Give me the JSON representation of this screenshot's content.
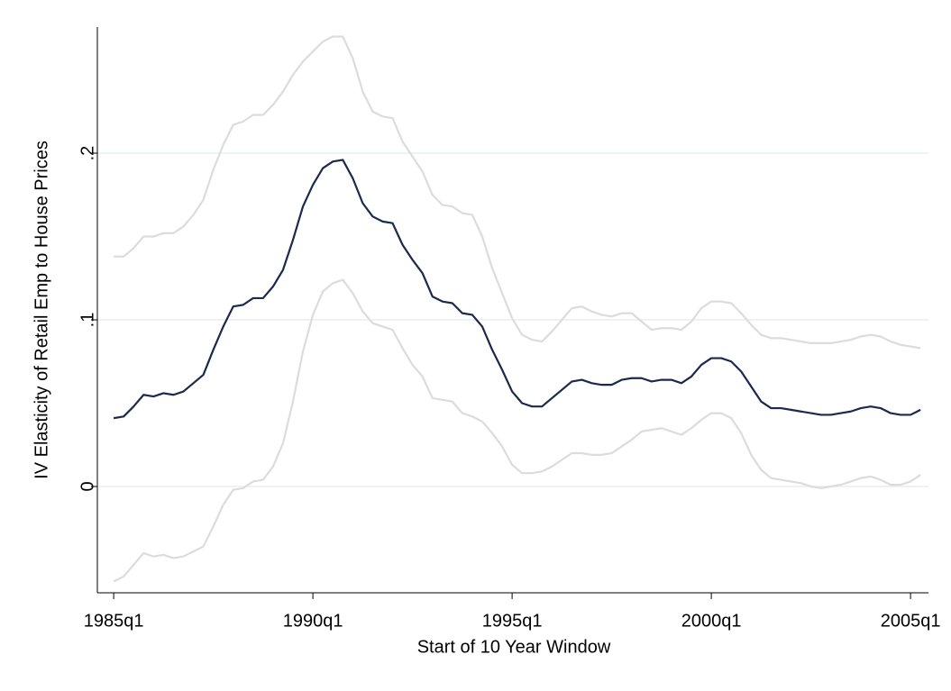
{
  "chart_data": {
    "type": "line",
    "y_label": "IV Elasticity of Retail Emp to House Prices",
    "x_label": "Start of 10 Year Window",
    "grid": true,
    "x": [
      1985,
      1985.25,
      1985.5,
      1985.75,
      1986,
      1986.25,
      1986.5,
      1986.75,
      1987,
      1987.25,
      1987.5,
      1987.75,
      1988,
      1988.25,
      1988.5,
      1988.75,
      1989,
      1989.25,
      1989.5,
      1989.75,
      1990,
      1990.25,
      1990.5,
      1990.75,
      1991,
      1991.25,
      1991.5,
      1991.75,
      1992,
      1992.25,
      1992.5,
      1992.75,
      1993,
      1993.25,
      1993.5,
      1993.75,
      1994,
      1994.25,
      1994.5,
      1994.75,
      1995,
      1995.25,
      1995.5,
      1995.75,
      1996,
      1996.25,
      1996.5,
      1996.75,
      1997,
      1997.25,
      1997.5,
      1997.75,
      1998,
      1998.25,
      1998.5,
      1998.75,
      1999,
      1999.25,
      1999.5,
      1999.75,
      2000,
      2000.25,
      2000.5,
      2000.75,
      2001,
      2001.25,
      2001.5,
      2001.75,
      2002,
      2002.25,
      2002.5,
      2002.75,
      2003,
      2003.25,
      2003.5,
      2003.75,
      2004,
      2004.25,
      2004.5,
      2004.75,
      2005,
      2005.25
    ],
    "xlim": [
      1984.59,
      2005.45
    ],
    "xticks": [
      {
        "value": 1985,
        "label": "1985q1"
      },
      {
        "value": 1990,
        "label": "1990q1"
      },
      {
        "value": 1995,
        "label": "1995q1"
      },
      {
        "value": 2000,
        "label": "2000q1"
      },
      {
        "value": 2005,
        "label": "2005q1"
      }
    ],
    "ylim": [
      -0.0638,
      0.2757
    ],
    "yticks": [
      0,
      {
        "value": 0.1,
        "label": ".1"
      },
      {
        "value": 0.2,
        "label": ".2"
      }
    ],
    "series": [
      {
        "color": "#dcdcdc",
        "values": [
          -0.057,
          -0.054,
          -0.047,
          -0.04,
          -0.042,
          -0.041,
          -0.043,
          -0.042,
          -0.039,
          -0.036,
          -0.024,
          -0.011,
          -0.002,
          -0.001,
          0.003,
          0.004,
          0.012,
          0.026,
          0.051,
          0.081,
          0.103,
          0.117,
          0.122,
          0.124,
          0.116,
          0.105,
          0.098,
          0.096,
          0.094,
          0.083,
          0.073,
          0.066,
          0.053,
          0.052,
          0.051,
          0.044,
          0.042,
          0.039,
          0.032,
          0.024,
          0.013,
          0.008,
          0.008,
          0.009,
          0.012,
          0.016,
          0.02,
          0.02,
          0.019,
          0.019,
          0.02,
          0.024,
          0.028,
          0.033,
          0.034,
          0.035,
          0.033,
          0.031,
          0.035,
          0.04,
          0.044,
          0.044,
          0.041,
          0.032,
          0.019,
          0.01,
          0.005,
          0.004,
          0.003,
          0.002,
          0.0,
          -0.001,
          0.0,
          0.001,
          0.003,
          0.005,
          0.006,
          0.004,
          0.001,
          0.001,
          0.003,
          0.007
        ]
      },
      {
        "color": "#dcdcdc",
        "values": [
          0.138,
          0.138,
          0.143,
          0.15,
          0.15,
          0.152,
          0.152,
          0.156,
          0.163,
          0.172,
          0.19,
          0.205,
          0.217,
          0.219,
          0.223,
          0.223,
          0.229,
          0.237,
          0.247,
          0.255,
          0.261,
          0.267,
          0.27,
          0.27,
          0.257,
          0.237,
          0.225,
          0.222,
          0.221,
          0.207,
          0.198,
          0.189,
          0.175,
          0.169,
          0.168,
          0.164,
          0.163,
          0.15,
          0.131,
          0.116,
          0.101,
          0.091,
          0.088,
          0.087,
          0.093,
          0.1,
          0.107,
          0.108,
          0.105,
          0.103,
          0.102,
          0.104,
          0.104,
          0.099,
          0.094,
          0.095,
          0.095,
          0.094,
          0.099,
          0.107,
          0.111,
          0.111,
          0.11,
          0.104,
          0.097,
          0.091,
          0.089,
          0.089,
          0.088,
          0.087,
          0.086,
          0.086,
          0.086,
          0.087,
          0.088,
          0.09,
          0.091,
          0.09,
          0.087,
          0.085,
          0.084,
          0.083
        ]
      },
      {
        "color": "#1a2a4c",
        "values": [
          0.041,
          0.042,
          0.048,
          0.055,
          0.054,
          0.056,
          0.055,
          0.057,
          0.062,
          0.067,
          0.082,
          0.096,
          0.108,
          0.109,
          0.113,
          0.113,
          0.12,
          0.13,
          0.148,
          0.168,
          0.181,
          0.191,
          0.195,
          0.196,
          0.185,
          0.17,
          0.162,
          0.159,
          0.158,
          0.145,
          0.136,
          0.128,
          0.114,
          0.111,
          0.11,
          0.104,
          0.103,
          0.096,
          0.082,
          0.07,
          0.057,
          0.05,
          0.048,
          0.048,
          0.053,
          0.058,
          0.063,
          0.064,
          0.062,
          0.061,
          0.061,
          0.064,
          0.065,
          0.065,
          0.063,
          0.064,
          0.064,
          0.062,
          0.066,
          0.073,
          0.077,
          0.077,
          0.075,
          0.069,
          0.06,
          0.051,
          0.047,
          0.047,
          0.046,
          0.045,
          0.044,
          0.043,
          0.043,
          0.044,
          0.045,
          0.047,
          0.048,
          0.047,
          0.044,
          0.043,
          0.043,
          0.046
        ]
      }
    ]
  }
}
